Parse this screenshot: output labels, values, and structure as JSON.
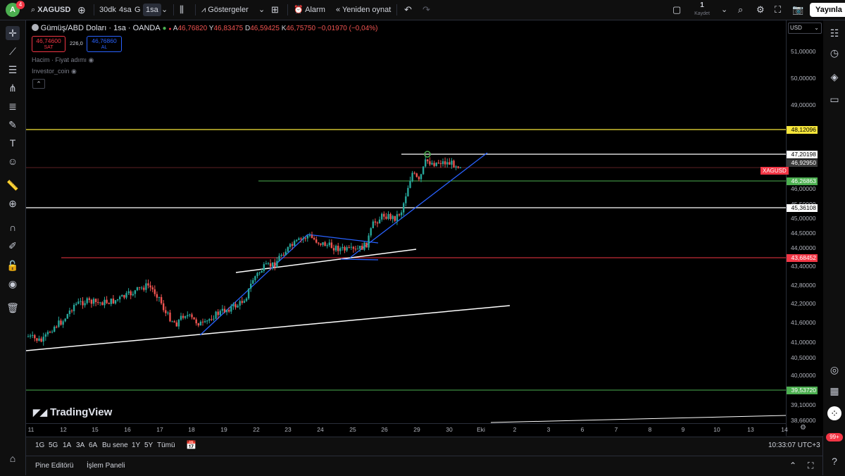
{
  "topbar": {
    "avatar_letter": "A",
    "avatar_badge": "4",
    "symbol": "XAGUSD",
    "intervals": [
      "30dk",
      "4sa",
      "G",
      "1sa"
    ],
    "indicators_label": "Göstergeler",
    "alarm_label": "Alarm",
    "replay_label": "Yeniden oynat",
    "save_count": "1",
    "save_label": "Kaydet",
    "publish_label": "Yayınla"
  },
  "legend": {
    "title": "Gümüş/ABD Doları · 1sa · OANDA",
    "o_label": "A",
    "o_val": "46,76820",
    "h_label": "Y",
    "h_val": "46,83475",
    "l_label": "D",
    "l_val": "46,59425",
    "c_label": "K",
    "c_val": "46,75750",
    "change": "−0,01970 (−0,04%)",
    "sell_price": "46,74600",
    "sell_label": "SAT",
    "spread": "226,0",
    "buy_price": "46,76860",
    "buy_label": "AL",
    "volume_label": "Hacim · Fiyat adımı",
    "indicator2_label": "Investor_coin"
  },
  "watermark": "TradingView",
  "currency": "USD",
  "price_axis": {
    "labels": [
      "51,00000",
      "50,00000",
      "49,00000",
      "46,00000",
      "45,50000",
      "45,00000",
      "44,50000",
      "44,00000",
      "43,40000",
      "42,80000",
      "42,20000",
      "41,60000",
      "41,00000",
      "40,50000",
      "40,00000",
      "39,10000",
      "38,66000"
    ],
    "tags": [
      {
        "value": "48,12096",
        "bg": "#f7e63a",
        "fg": "#000000"
      },
      {
        "value": "47,20198",
        "bg": "#ffffff",
        "fg": "#000000"
      },
      {
        "value": "46,92950",
        "bg": "#3a3a3a",
        "fg": "#ffffff"
      },
      {
        "value": "46,26863",
        "bg": "#4caf50",
        "fg": "#ffffff"
      },
      {
        "value": "45,36108",
        "bg": "#ffffff",
        "fg": "#000000"
      },
      {
        "value": "43,68452",
        "bg": "#f23645",
        "fg": "#ffffff"
      },
      {
        "value": "39,53720",
        "bg": "#4caf50",
        "fg": "#ffffff"
      }
    ],
    "symbol_tag": "XAGUSD"
  },
  "time_axis": [
    "11",
    "12",
    "15",
    "16",
    "17",
    "18",
    "19",
    "22",
    "23",
    "24",
    "25",
    "26",
    "29",
    "30",
    "Eki",
    "2",
    "3",
    "6",
    "7",
    "8",
    "9",
    "10",
    "13",
    "14"
  ],
  "range_buttons": [
    "1G",
    "5G",
    "1A",
    "3A",
    "6A",
    "Bu sene",
    "1Y",
    "5Y",
    "Tümü"
  ],
  "clock": "10:33:07 UTC+3",
  "bottom_tabs": [
    "Pine Editörü",
    "İşlem Paneli"
  ],
  "notification_badge": "99+",
  "colors": {
    "up": "#26a69a",
    "down": "#ef5350",
    "accent": "#2962ff"
  }
}
